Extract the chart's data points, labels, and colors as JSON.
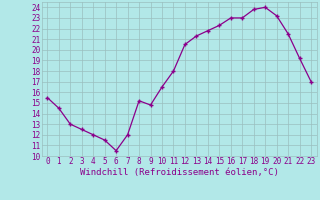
{
  "x": [
    0,
    1,
    2,
    3,
    4,
    5,
    6,
    7,
    8,
    9,
    10,
    11,
    12,
    13,
    14,
    15,
    16,
    17,
    18,
    19,
    20,
    21,
    22,
    23
  ],
  "y": [
    15.5,
    14.5,
    13.0,
    12.5,
    12.0,
    11.5,
    10.5,
    12.0,
    15.2,
    14.8,
    16.5,
    18.0,
    20.5,
    21.3,
    21.8,
    22.3,
    23.0,
    23.0,
    23.8,
    24.0,
    23.2,
    21.5,
    19.2,
    17.0
  ],
  "line_color": "#8B008B",
  "marker": "+",
  "bg_color": "#b2e8e8",
  "grid_color": "#9abfbf",
  "xlabel": "Windchill (Refroidissement éolien,°C)",
  "xlim": [
    -0.5,
    23.5
  ],
  "ylim": [
    10,
    24.5
  ],
  "yticks": [
    10,
    11,
    12,
    13,
    14,
    15,
    16,
    17,
    18,
    19,
    20,
    21,
    22,
    23,
    24
  ],
  "xticks": [
    0,
    1,
    2,
    3,
    4,
    5,
    6,
    7,
    8,
    9,
    10,
    11,
    12,
    13,
    14,
    15,
    16,
    17,
    18,
    19,
    20,
    21,
    22,
    23
  ],
  "tick_label_fontsize": 5.5,
  "xlabel_fontsize": 6.5,
  "text_color": "#8B008B"
}
